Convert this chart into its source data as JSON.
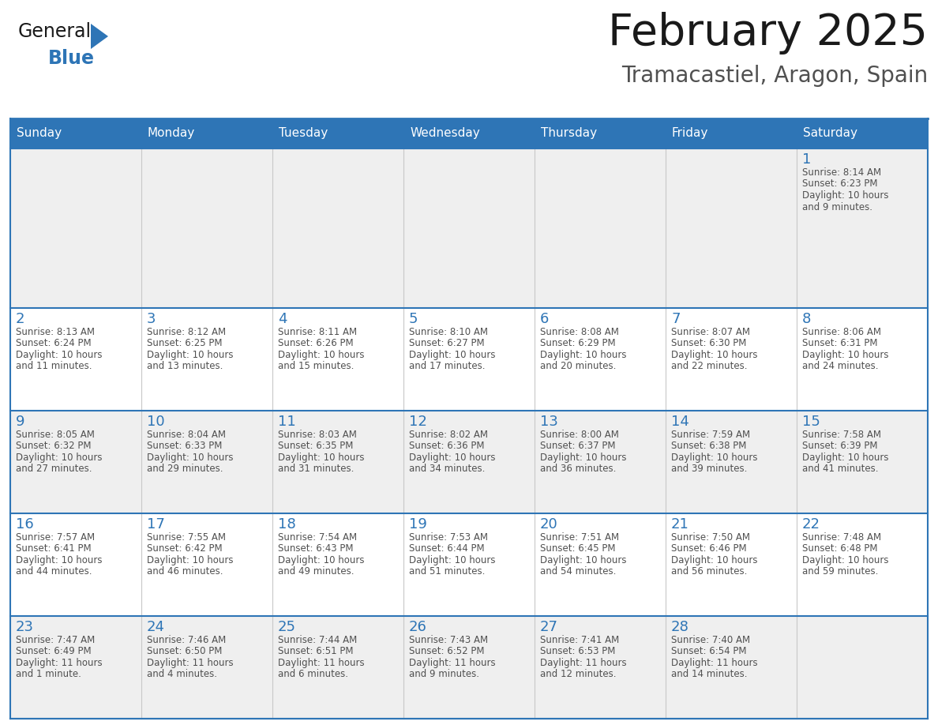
{
  "title": "February 2025",
  "subtitle": "Tramacastiel, Aragon, Spain",
  "header_bg": "#2E75B6",
  "header_text_color": "#FFFFFF",
  "border_color": "#2E75B6",
  "cell_line_color": "#C8C8C8",
  "day_headers": [
    "Sunday",
    "Monday",
    "Tuesday",
    "Wednesday",
    "Thursday",
    "Friday",
    "Saturday"
  ],
  "title_color": "#1a1a1a",
  "subtitle_color": "#505050",
  "day_number_color": "#2E75B6",
  "cell_text_color": "#505050",
  "row_bg_colors": [
    "#EFEFEF",
    "#FFFFFF",
    "#EFEFEF",
    "#FFFFFF",
    "#EFEFEF"
  ],
  "calendar_data": {
    "1": {
      "sunrise": "8:14 AM",
      "sunset": "6:23 PM",
      "daylight": "10 hours and 9 minutes"
    },
    "2": {
      "sunrise": "8:13 AM",
      "sunset": "6:24 PM",
      "daylight": "10 hours and 11 minutes"
    },
    "3": {
      "sunrise": "8:12 AM",
      "sunset": "6:25 PM",
      "daylight": "10 hours and 13 minutes"
    },
    "4": {
      "sunrise": "8:11 AM",
      "sunset": "6:26 PM",
      "daylight": "10 hours and 15 minutes"
    },
    "5": {
      "sunrise": "8:10 AM",
      "sunset": "6:27 PM",
      "daylight": "10 hours and 17 minutes"
    },
    "6": {
      "sunrise": "8:08 AM",
      "sunset": "6:29 PM",
      "daylight": "10 hours and 20 minutes"
    },
    "7": {
      "sunrise": "8:07 AM",
      "sunset": "6:30 PM",
      "daylight": "10 hours and 22 minutes"
    },
    "8": {
      "sunrise": "8:06 AM",
      "sunset": "6:31 PM",
      "daylight": "10 hours and 24 minutes"
    },
    "9": {
      "sunrise": "8:05 AM",
      "sunset": "6:32 PM",
      "daylight": "10 hours and 27 minutes"
    },
    "10": {
      "sunrise": "8:04 AM",
      "sunset": "6:33 PM",
      "daylight": "10 hours and 29 minutes"
    },
    "11": {
      "sunrise": "8:03 AM",
      "sunset": "6:35 PM",
      "daylight": "10 hours and 31 minutes"
    },
    "12": {
      "sunrise": "8:02 AM",
      "sunset": "6:36 PM",
      "daylight": "10 hours and 34 minutes"
    },
    "13": {
      "sunrise": "8:00 AM",
      "sunset": "6:37 PM",
      "daylight": "10 hours and 36 minutes"
    },
    "14": {
      "sunrise": "7:59 AM",
      "sunset": "6:38 PM",
      "daylight": "10 hours and 39 minutes"
    },
    "15": {
      "sunrise": "7:58 AM",
      "sunset": "6:39 PM",
      "daylight": "10 hours and 41 minutes"
    },
    "16": {
      "sunrise": "7:57 AM",
      "sunset": "6:41 PM",
      "daylight": "10 hours and 44 minutes"
    },
    "17": {
      "sunrise": "7:55 AM",
      "sunset": "6:42 PM",
      "daylight": "10 hours and 46 minutes"
    },
    "18": {
      "sunrise": "7:54 AM",
      "sunset": "6:43 PM",
      "daylight": "10 hours and 49 minutes"
    },
    "19": {
      "sunrise": "7:53 AM",
      "sunset": "6:44 PM",
      "daylight": "10 hours and 51 minutes"
    },
    "20": {
      "sunrise": "7:51 AM",
      "sunset": "6:45 PM",
      "daylight": "10 hours and 54 minutes"
    },
    "21": {
      "sunrise": "7:50 AM",
      "sunset": "6:46 PM",
      "daylight": "10 hours and 56 minutes"
    },
    "22": {
      "sunrise": "7:48 AM",
      "sunset": "6:48 PM",
      "daylight": "10 hours and 59 minutes"
    },
    "23": {
      "sunrise": "7:47 AM",
      "sunset": "6:49 PM",
      "daylight": "11 hours and 1 minute"
    },
    "24": {
      "sunrise": "7:46 AM",
      "sunset": "6:50 PM",
      "daylight": "11 hours and 4 minutes"
    },
    "25": {
      "sunrise": "7:44 AM",
      "sunset": "6:51 PM",
      "daylight": "11 hours and 6 minutes"
    },
    "26": {
      "sunrise": "7:43 AM",
      "sunset": "6:52 PM",
      "daylight": "11 hours and 9 minutes"
    },
    "27": {
      "sunrise": "7:41 AM",
      "sunset": "6:53 PM",
      "daylight": "11 hours and 12 minutes"
    },
    "28": {
      "sunrise": "7:40 AM",
      "sunset": "6:54 PM",
      "daylight": "11 hours and 14 minutes"
    }
  },
  "logo_general_color": "#1a1a1a",
  "logo_blue_color": "#2E75B6",
  "fig_width": 11.88,
  "fig_height": 9.18,
  "dpi": 100
}
